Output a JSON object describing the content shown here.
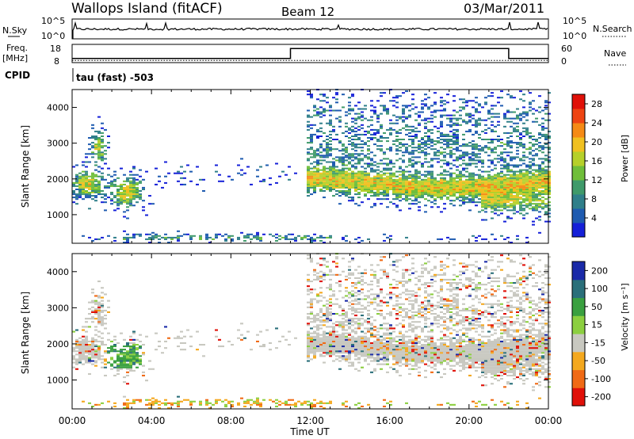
{
  "header": {
    "site": "Wallops Island (fitACF)",
    "beam": "Beam 12",
    "date": "03/Mar/2011"
  },
  "noise_panel": {
    "left_label": "N.Sky",
    "right_label": "N.Search",
    "left_ticks": [
      "10^5",
      "10^0"
    ],
    "right_ticks": [
      "10^5",
      "10^0"
    ]
  },
  "freq_panel": {
    "left_label_1": "Freq.",
    "left_label_2": "[MHz]",
    "right_label": "Nave",
    "left_ticks": [
      "18",
      "8"
    ],
    "right_ticks": [
      "60",
      "0"
    ]
  },
  "cpid_panel": {
    "label": "CPID",
    "text": "tau (fast) -503"
  },
  "colors": {
    "power": [
      "#1520d8",
      "#1e5bb0",
      "#2f7f8a",
      "#3f9a6a",
      "#6fbe3a",
      "#b6d02a",
      "#f0c020",
      "#f58a15",
      "#ee4412",
      "#e01008"
    ],
    "velocity": [
      "#e01008",
      "#f06a15",
      "#f4a81e",
      "#c8c8c0",
      "#8ccf40",
      "#3aa040",
      "#2a6f7a",
      "#1a2aa8"
    ]
  },
  "chart_data": [
    {
      "type": "heatmap",
      "name": "power-panel",
      "xlabel": "",
      "ylabel": "Slant Range [km]",
      "xlim": [
        "00:00",
        "24:00"
      ],
      "ylim": [
        200,
        4500
      ],
      "y_ticks": [
        "1000",
        "2000",
        "3000",
        "4000"
      ],
      "colorbar": {
        "label": "Power [dB]",
        "ticks": [
          "4",
          "8",
          "12",
          "16",
          "20",
          "24",
          "28"
        ],
        "range": [
          0,
          30
        ]
      }
    },
    {
      "type": "heatmap",
      "name": "velocity-panel",
      "xlabel": "Time UT",
      "ylabel": "Slant Range [km]",
      "xlim": [
        "00:00",
        "24:00"
      ],
      "ylim": [
        200,
        4500
      ],
      "x_ticks": [
        "00:00",
        "04:00",
        "08:00",
        "12:00",
        "16:00",
        "20:00",
        "00:00"
      ],
      "y_ticks": [
        "1000",
        "2000",
        "3000",
        "4000"
      ],
      "colorbar": {
        "label": "Velocity [m s⁻¹]",
        "ticks": [
          "200",
          "100",
          "50",
          "15",
          "-15",
          "-50",
          "-100",
          "-200"
        ]
      }
    }
  ],
  "freq_series": {
    "freq_mhz": [
      {
        "t": 0,
        "v": 10
      },
      {
        "t": 11,
        "v": 10
      },
      {
        "t": 11,
        "v": 16
      },
      {
        "t": 22,
        "v": 16
      },
      {
        "t": 22,
        "v": 10
      },
      {
        "t": 24,
        "v": 10
      }
    ],
    "nave": [
      {
        "t": 0,
        "v": 5
      },
      {
        "t": 24,
        "v": 5
      }
    ]
  }
}
